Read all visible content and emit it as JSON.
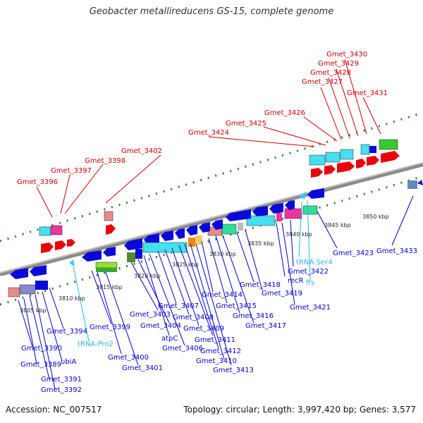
{
  "title": "Geobacter metallireducens GS-15, complete genome",
  "footer": {
    "accession": "Accession: NC_007517",
    "summary": "Topology: circular; Length: 3,997,420 bp; Genes: 3,577"
  },
  "colors": {
    "backbone": "#888888",
    "tick": "#2e7d32",
    "gene_forward": "#e8000b",
    "gene_reverse": "#0a0ad8",
    "rna": "#33ccff",
    "label_forward": "#cc0000",
    "label_reverse": "#0000cc",
    "label_rna": "#29b6e0"
  },
  "scale_labels": [
    "3805 kbp",
    "3810 kbp",
    "3815 kbp",
    "3820 kbp",
    "3825 kbp",
    "3830 kbp",
    "3835 kbp",
    "3840 kbp",
    "3845 kbp",
    "3850 kbp"
  ],
  "top_labels": [
    "Gmet_3396",
    "Gmet_3397",
    "Gmet_3398",
    "Gmet_3402",
    "Gmet_3424",
    "Gmet_3425",
    "Gmet_3426",
    "Gmet_3427",
    "Gmet_3428",
    "Gmet_3429",
    "Gmet_3430",
    "Gmet_3431"
  ],
  "bottom_labels": [
    "Gmet_3394",
    "Gmet_3390",
    "Gmet_3389",
    "ubiA",
    "Gmet_3391",
    "Gmet_3392",
    "tRNA-Pro2",
    "Gmet_3399",
    "Gmet_3400",
    "Gmet_3401",
    "Gmet_3403",
    "Gmet_3404",
    "atpC",
    "Gmet_3406",
    "Gmet_3407",
    "Gmet_3408",
    "Gmet_3409",
    "Gmet_3411",
    "Gmet_3412",
    "Gmet_3410",
    "Gmet_3413",
    "Gmet_3414",
    "Gmet_3415",
    "Gmet_3416",
    "Gmet_3417",
    "Gmet_3418",
    "Gmet_3419",
    "recR",
    "Gmet_3421",
    "Gmet_3422",
    "tRNA-Ser4",
    "ffs",
    "Gmet_3423",
    "Gmet_3433"
  ]
}
